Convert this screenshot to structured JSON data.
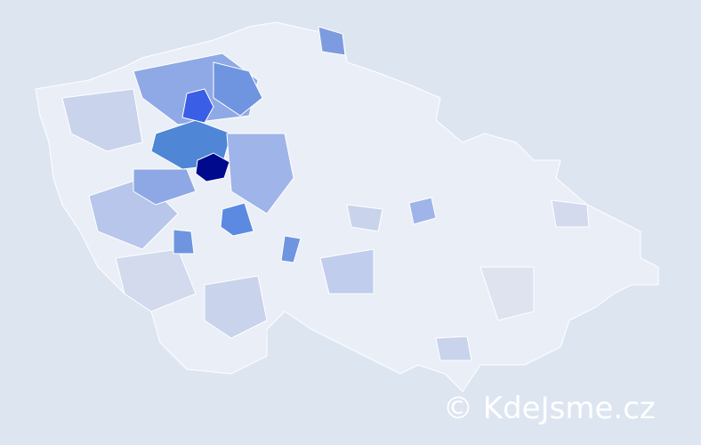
{
  "watermark": "© KdeJsme.cz"
}
